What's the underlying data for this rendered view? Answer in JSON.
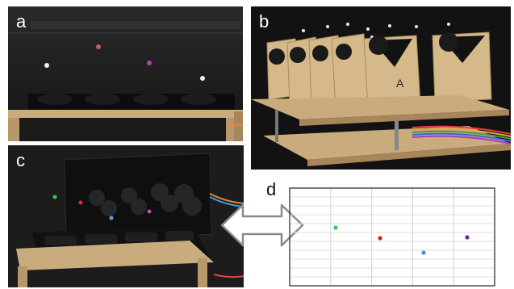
{
  "panels": {
    "a": {
      "label": "a"
    },
    "b": {
      "label": "b"
    },
    "c": {
      "label": "c"
    },
    "d": {
      "label": "d"
    }
  },
  "plot_dots": [
    {
      "name": "green-dot",
      "color": "#2ecc55"
    },
    {
      "name": "red-dot",
      "color": "#cc2222"
    },
    {
      "name": "blue-dot",
      "color": "#4a90e2"
    },
    {
      "name": "purple-dot",
      "color": "#6a2a8a"
    }
  ],
  "arrow_icon": "double-headed-arrow-icon"
}
